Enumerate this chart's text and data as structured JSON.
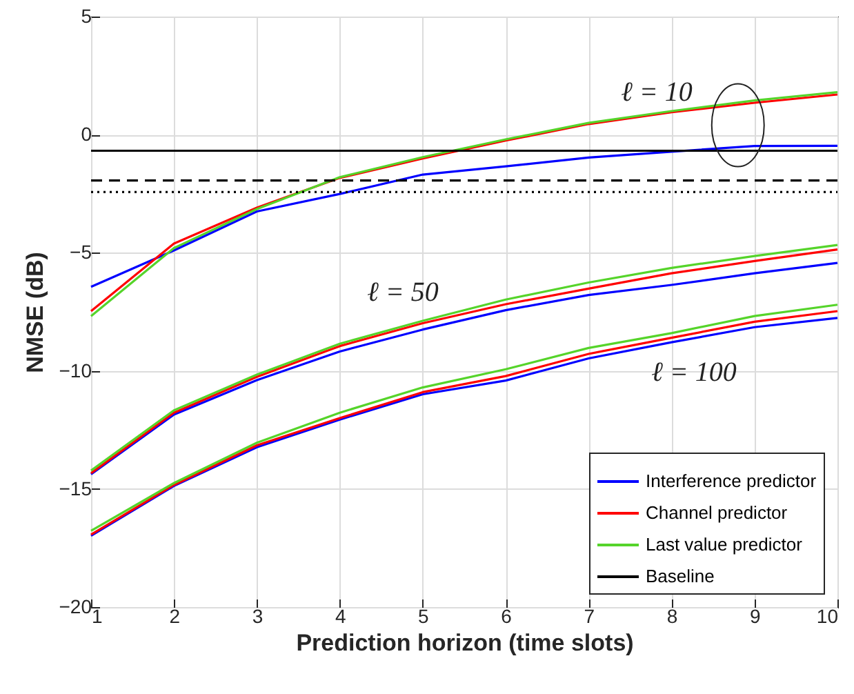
{
  "chart_data": {
    "type": "line",
    "xlabel": "Prediction horizon (time slots)",
    "ylabel": "NMSE (dB)",
    "x": [
      1,
      2,
      3,
      4,
      5,
      6,
      7,
      8,
      9,
      10
    ],
    "series": [
      {
        "name": "Interference predictor",
        "color": "#0000ff",
        "values": [
          -6.44,
          -4.9,
          -3.25,
          -2.51,
          -1.69,
          -1.34,
          -0.97,
          -0.72,
          -0.48,
          -0.47
        ]
      },
      {
        "name": "Channel predictor",
        "color": "#ff0000",
        "values": [
          -7.47,
          -4.61,
          -3.09,
          -1.83,
          -1.01,
          -0.25,
          0.45,
          0.95,
          1.35,
          1.7
        ]
      },
      {
        "name": "Last value predictor",
        "color": "#55d42a",
        "values": [
          -7.68,
          -4.8,
          -3.15,
          -1.8,
          -0.95,
          -0.2,
          0.5,
          1.0,
          1.45,
          1.8
        ]
      },
      {
        "name": "Baseline",
        "color": "#000000",
        "values": [
          -0.68,
          -0.68,
          -0.68,
          -0.68,
          -0.68,
          -0.68,
          -0.68,
          -0.68,
          -0.68,
          -0.68
        ]
      },
      {
        "color": "#000000",
        "line_style": "dashed",
        "values": [
          -1.94,
          -1.94,
          -1.94,
          -1.94,
          -1.94,
          -1.94,
          -1.94,
          -1.94,
          -1.94,
          -1.94
        ]
      },
      {
        "color": "#000000",
        "line_style": "dotted",
        "values": [
          -2.43,
          -2.43,
          -2.43,
          -2.43,
          -2.43,
          -2.43,
          -2.43,
          -2.43,
          -2.43,
          -2.43
        ]
      },
      {
        "color": "#0000ff",
        "values": [
          -14.38,
          -11.85,
          -10.39,
          -9.18,
          -8.25,
          -7.43,
          -6.79,
          -6.36,
          -5.87,
          -5.43
        ]
      },
      {
        "color": "#ff0000",
        "values": [
          -14.33,
          -11.77,
          -10.25,
          -8.95,
          -7.98,
          -7.18,
          -6.52,
          -5.87,
          -5.35,
          -4.86
        ]
      },
      {
        "color": "#55d42a",
        "values": [
          -14.22,
          -11.67,
          -10.16,
          -8.85,
          -7.88,
          -6.98,
          -6.26,
          -5.64,
          -5.14,
          -4.67
        ]
      },
      {
        "color": "#0000ff",
        "values": [
          -16.98,
          -14.87,
          -13.23,
          -12.06,
          -10.99,
          -10.41,
          -9.47,
          -8.79,
          -8.15,
          -7.76
        ]
      },
      {
        "color": "#ff0000",
        "values": [
          -16.93,
          -14.83,
          -13.15,
          -12.0,
          -10.9,
          -10.22,
          -9.28,
          -8.6,
          -7.92,
          -7.47
        ]
      },
      {
        "color": "#55d42a",
        "values": [
          -16.77,
          -14.75,
          -13.04,
          -11.77,
          -10.7,
          -9.93,
          -9.03,
          -8.4,
          -7.68,
          -7.2
        ]
      }
    ],
    "annotations": [
      "ℓ = 10",
      "ℓ = 50",
      "ℓ = 100"
    ],
    "xlim": [
      1,
      10
    ],
    "xticks": [
      1,
      2,
      3,
      4,
      5,
      6,
      7,
      8,
      9,
      10
    ],
    "ylim": [
      -20,
      5
    ],
    "yticks": [
      -20,
      -15,
      -10,
      -5,
      0,
      5
    ],
    "grid": true,
    "legend": "bottom right",
    "line_style": "solid"
  }
}
